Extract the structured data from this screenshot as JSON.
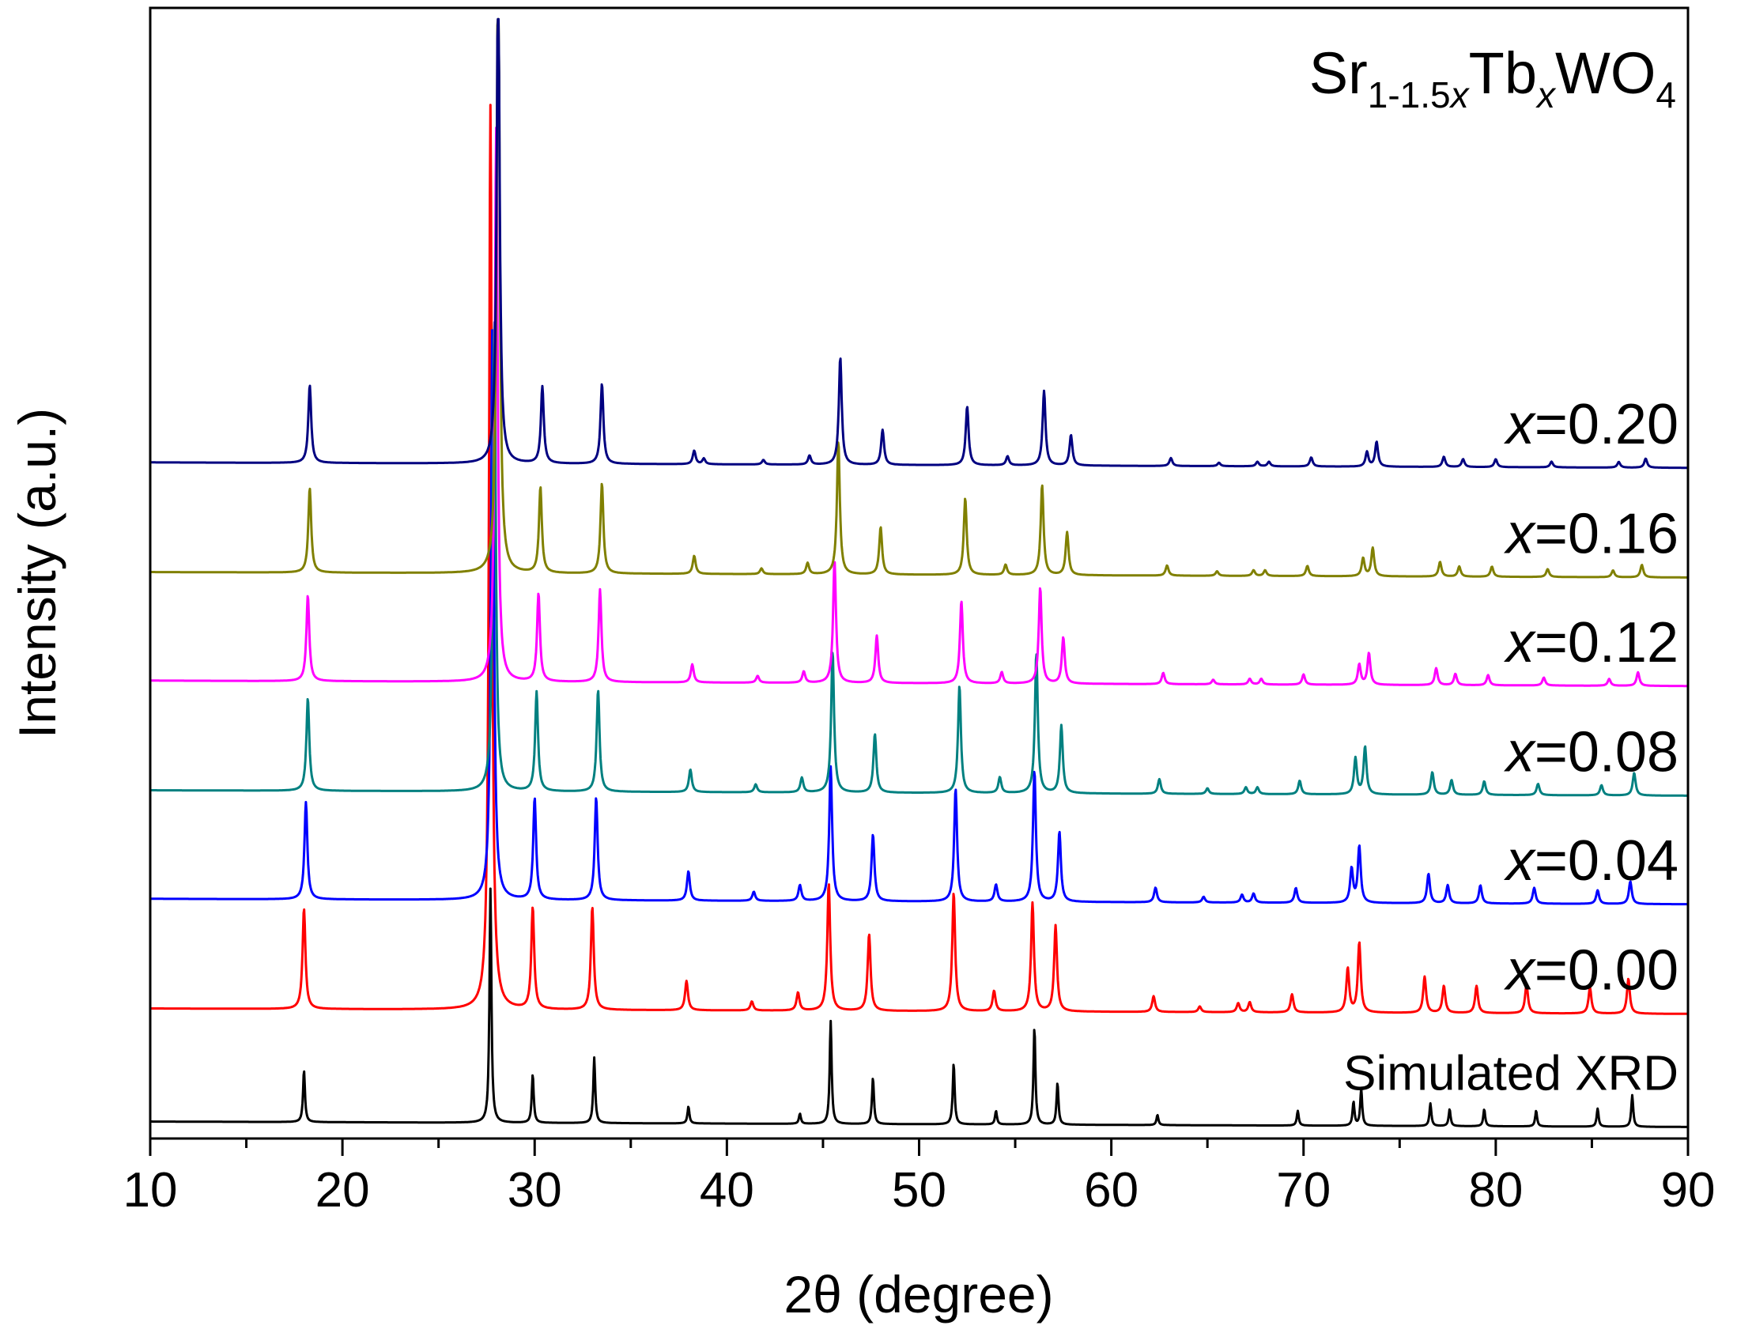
{
  "chart_data": {
    "type": "line",
    "title": {
      "parts": [
        {
          "text": "Sr",
          "style": "normal"
        },
        {
          "text": "1-1.5",
          "style": "sub"
        },
        {
          "text": "x",
          "style": "sub-italic"
        },
        {
          "text": "Tb",
          "style": "normal"
        },
        {
          "text": "x",
          "style": "sub-italic"
        },
        {
          "text": "WO",
          "style": "normal"
        },
        {
          "text": "4",
          "style": "sub"
        }
      ]
    },
    "xlabel": "2θ (degree)",
    "ylabel": "Intensity (a.u.)",
    "xlim": [
      10,
      90
    ],
    "ylim": [
      0,
      100
    ],
    "xticks": [
      10,
      20,
      30,
      40,
      50,
      60,
      70,
      80,
      90
    ],
    "yticks_shown": false,
    "series": [
      {
        "name": "Simulated XRD",
        "label": "Simulated XRD",
        "label_italic": "",
        "label_value": "",
        "color": "#000000",
        "baseline": 1.5,
        "width": 0.06,
        "peaks": [
          [
            18.0,
            4.6
          ],
          [
            27.7,
            20.7
          ],
          [
            29.9,
            4.3
          ],
          [
            33.1,
            5.8
          ],
          [
            38.0,
            1.5
          ],
          [
            43.8,
            0.9
          ],
          [
            45.4,
            9.1
          ],
          [
            47.6,
            4.1
          ],
          [
            51.8,
            5.4
          ],
          [
            54.0,
            1.2
          ],
          [
            56.0,
            8.6
          ],
          [
            57.2,
            3.7
          ],
          [
            62.4,
            0.9
          ],
          [
            69.7,
            1.3
          ],
          [
            72.6,
            2.1
          ],
          [
            73.0,
            3.3
          ],
          [
            76.6,
            2.0
          ],
          [
            77.6,
            1.5
          ],
          [
            79.4,
            1.5
          ],
          [
            82.1,
            1.4
          ],
          [
            85.3,
            1.6
          ],
          [
            87.1,
            2.8
          ]
        ]
      },
      {
        "name": "x=0.00",
        "label": "",
        "label_italic": "x",
        "label_value": "=0.00",
        "color": "#ff0000",
        "baseline": 11.5,
        "width": 0.09,
        "peaks": [
          [
            18.0,
            8.9
          ],
          [
            27.7,
            80.0
          ],
          [
            29.9,
            9.0
          ],
          [
            33.0,
            9.1
          ],
          [
            37.9,
            2.6
          ],
          [
            41.3,
            0.8
          ],
          [
            43.7,
            1.6
          ],
          [
            45.3,
            11.3
          ],
          [
            47.4,
            6.8
          ],
          [
            51.8,
            10.5
          ],
          [
            53.9,
            1.8
          ],
          [
            55.9,
            9.6
          ],
          [
            57.1,
            7.6
          ],
          [
            62.2,
            1.4
          ],
          [
            64.6,
            0.5
          ],
          [
            66.6,
            0.8
          ],
          [
            67.2,
            0.9
          ],
          [
            69.4,
            1.6
          ],
          [
            72.3,
            3.9
          ],
          [
            72.9,
            6.2
          ],
          [
            76.3,
            3.2
          ],
          [
            77.3,
            2.4
          ],
          [
            79.0,
            2.4
          ],
          [
            81.6,
            2.6
          ],
          [
            84.9,
            2.3
          ],
          [
            86.9,
            3.1
          ]
        ]
      },
      {
        "name": "x=0.04",
        "label": "",
        "label_italic": "x",
        "label_value": "=0.04",
        "color": "#0000ff",
        "baseline": 21.2,
        "width": 0.09,
        "peaks": [
          [
            18.1,
            8.6
          ],
          [
            27.8,
            51.0
          ],
          [
            30.0,
            9.0
          ],
          [
            33.2,
            9.1
          ],
          [
            38.0,
            2.6
          ],
          [
            41.4,
            0.8
          ],
          [
            43.8,
            1.4
          ],
          [
            45.4,
            11.9
          ],
          [
            47.6,
            5.9
          ],
          [
            51.9,
            10.0
          ],
          [
            54.0,
            1.5
          ],
          [
            56.0,
            11.6
          ],
          [
            57.3,
            6.2
          ],
          [
            62.3,
            1.3
          ],
          [
            64.8,
            0.5
          ],
          [
            66.8,
            0.7
          ],
          [
            67.4,
            0.8
          ],
          [
            69.6,
            1.3
          ],
          [
            72.5,
            3.0
          ],
          [
            72.9,
            5.0
          ],
          [
            76.5,
            2.6
          ],
          [
            77.5,
            1.6
          ],
          [
            79.2,
            1.6
          ],
          [
            82.0,
            1.4
          ],
          [
            85.3,
            1.2
          ],
          [
            87.0,
            2.0
          ]
        ]
      },
      {
        "name": "x=0.08",
        "label": "",
        "label_italic": "x",
        "label_value": "=0.08",
        "color": "#008080",
        "baseline": 30.8,
        "width": 0.09,
        "peaks": [
          [
            18.2,
            8.2
          ],
          [
            27.9,
            42.0
          ],
          [
            30.1,
            8.8
          ],
          [
            33.3,
            9.0
          ],
          [
            38.1,
            2.0
          ],
          [
            41.5,
            0.7
          ],
          [
            43.9,
            1.3
          ],
          [
            45.5,
            12.5
          ],
          [
            47.7,
            5.2
          ],
          [
            52.1,
            9.5
          ],
          [
            54.2,
            1.4
          ],
          [
            56.1,
            12.4
          ],
          [
            57.4,
            6.0
          ],
          [
            62.5,
            1.3
          ],
          [
            65.0,
            0.5
          ],
          [
            67.0,
            0.6
          ],
          [
            67.6,
            0.6
          ],
          [
            69.8,
            1.2
          ],
          [
            72.7,
            3.2
          ],
          [
            73.2,
            4.2
          ],
          [
            76.7,
            2.0
          ],
          [
            77.7,
            1.3
          ],
          [
            79.4,
            1.2
          ],
          [
            82.2,
            1.0
          ],
          [
            85.5,
            0.9
          ],
          [
            87.2,
            2.0
          ]
        ]
      },
      {
        "name": "x=0.12",
        "label": "",
        "label_italic": "x",
        "label_value": "=0.12",
        "color": "#ff00ff",
        "baseline": 40.5,
        "width": 0.09,
        "peaks": [
          [
            18.2,
            7.6
          ],
          [
            28.0,
            49.0
          ],
          [
            30.2,
            7.8
          ],
          [
            33.4,
            8.2
          ],
          [
            38.2,
            1.6
          ],
          [
            41.6,
            0.6
          ],
          [
            44.0,
            1.0
          ],
          [
            45.6,
            10.8
          ],
          [
            47.8,
            4.2
          ],
          [
            52.2,
            7.3
          ],
          [
            54.3,
            1.0
          ],
          [
            56.3,
            8.5
          ],
          [
            57.5,
            4.1
          ],
          [
            62.7,
            1.0
          ],
          [
            65.3,
            0.4
          ],
          [
            67.2,
            0.5
          ],
          [
            67.8,
            0.5
          ],
          [
            70.0,
            0.9
          ],
          [
            72.9,
            1.8
          ],
          [
            73.4,
            2.8
          ],
          [
            76.9,
            1.5
          ],
          [
            77.9,
            1.0
          ],
          [
            79.6,
            0.9
          ],
          [
            82.5,
            0.7
          ],
          [
            85.9,
            0.6
          ],
          [
            87.4,
            1.2
          ]
        ]
      },
      {
        "name": "x=0.16",
        "label": "",
        "label_italic": "x",
        "label_value": "=0.16",
        "color": "#808000",
        "baseline": 50.1,
        "width": 0.09,
        "peaks": [
          [
            18.3,
            7.5
          ],
          [
            28.1,
            58.0
          ],
          [
            30.3,
            7.6
          ],
          [
            33.5,
            8.0
          ],
          [
            38.3,
            1.6
          ],
          [
            41.8,
            0.5
          ],
          [
            44.2,
            1.0
          ],
          [
            45.8,
            11.8
          ],
          [
            48.0,
            4.2
          ],
          [
            52.4,
            6.8
          ],
          [
            54.5,
            0.9
          ],
          [
            56.4,
            8.0
          ],
          [
            57.7,
            3.8
          ],
          [
            62.9,
            0.9
          ],
          [
            65.5,
            0.4
          ],
          [
            67.4,
            0.5
          ],
          [
            68.0,
            0.5
          ],
          [
            70.2,
            0.9
          ],
          [
            73.1,
            1.6
          ],
          [
            73.6,
            2.5
          ],
          [
            77.1,
            1.3
          ],
          [
            78.1,
            0.9
          ],
          [
            79.8,
            0.9
          ],
          [
            82.7,
            0.7
          ],
          [
            86.1,
            0.6
          ],
          [
            87.6,
            1.1
          ]
        ]
      },
      {
        "name": "x=0.20",
        "label": "",
        "label_italic": "x",
        "label_value": "=0.20",
        "color": "#000080",
        "baseline": 59.8,
        "width": 0.09,
        "peaks": [
          [
            18.3,
            6.9
          ],
          [
            28.1,
            45.0
          ],
          [
            30.4,
            6.8
          ],
          [
            33.5,
            7.1
          ],
          [
            38.3,
            1.2
          ],
          [
            38.8,
            0.5
          ],
          [
            41.9,
            0.4
          ],
          [
            44.3,
            0.8
          ],
          [
            45.9,
            9.5
          ],
          [
            48.1,
            3.1
          ],
          [
            52.5,
            5.2
          ],
          [
            54.6,
            0.8
          ],
          [
            56.5,
            6.6
          ],
          [
            57.9,
            2.7
          ],
          [
            63.1,
            0.7
          ],
          [
            65.6,
            0.3
          ],
          [
            67.6,
            0.4
          ],
          [
            68.2,
            0.4
          ],
          [
            70.4,
            0.8
          ],
          [
            73.3,
            1.3
          ],
          [
            73.8,
            2.2
          ],
          [
            77.3,
            0.9
          ],
          [
            78.3,
            0.7
          ],
          [
            80.0,
            0.7
          ],
          [
            82.9,
            0.5
          ],
          [
            86.4,
            0.5
          ],
          [
            87.8,
            0.8
          ]
        ]
      }
    ]
  }
}
